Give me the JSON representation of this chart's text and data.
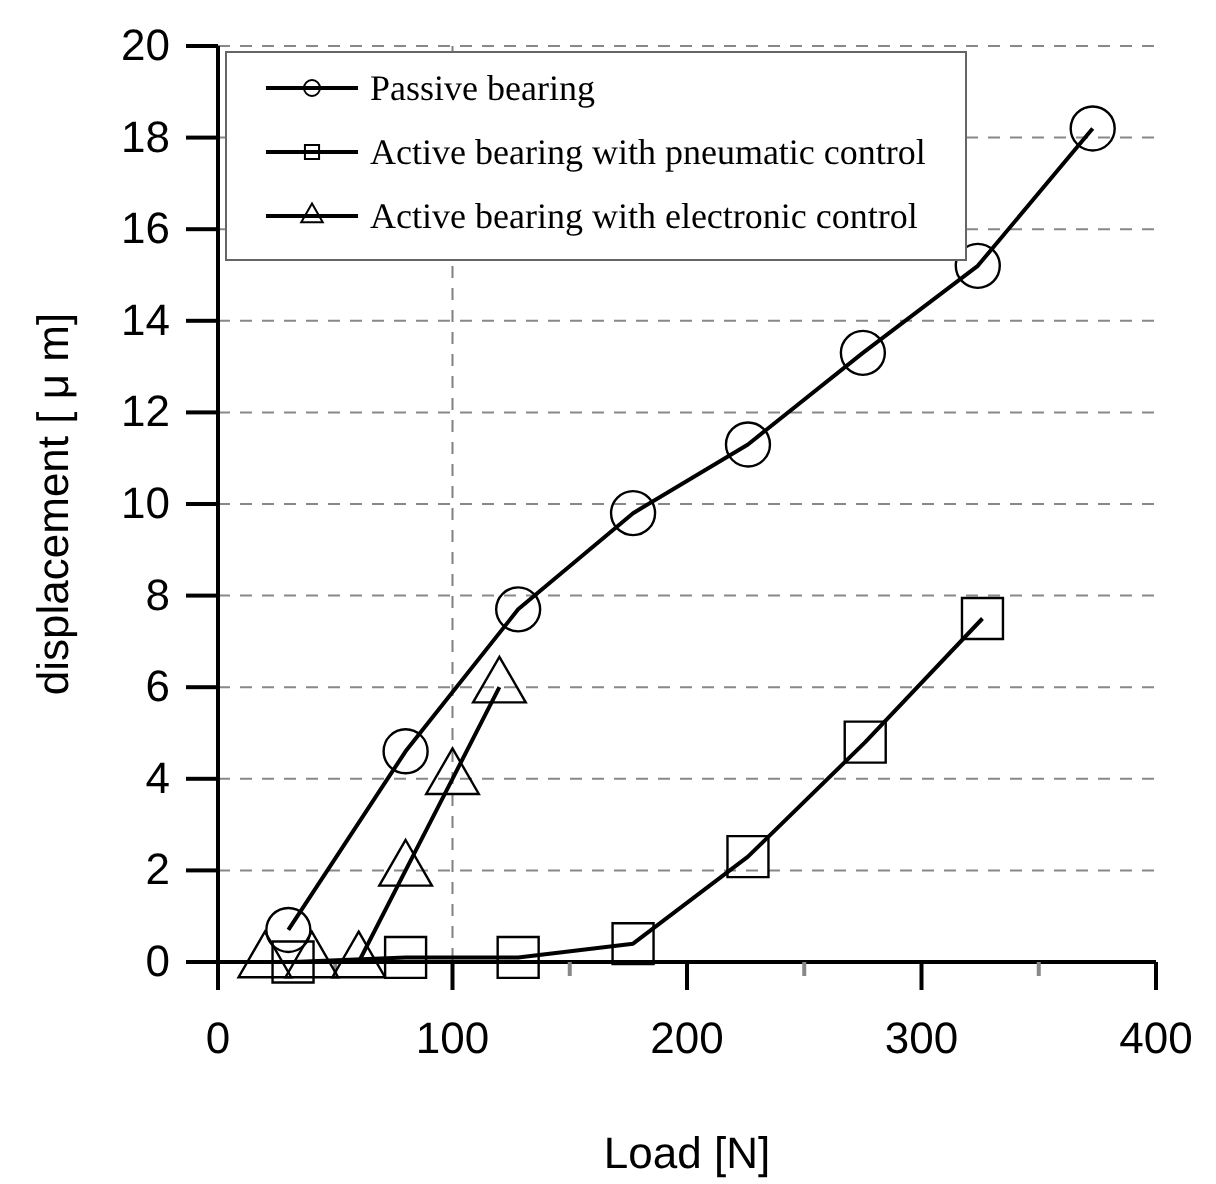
{
  "chart_data": {
    "type": "line",
    "xlabel": "Load [N]",
    "ylabel": "displacement [ μ m]",
    "xlim": [
      0,
      400
    ],
    "ylim": [
      0,
      20
    ],
    "xticks": [
      0,
      {
        "value": 50,
        "label": null
      },
      100,
      {
        "value": 150,
        "label": null
      },
      200,
      {
        "value": 250,
        "label": null
      },
      300,
      {
        "value": 350,
        "label": null
      },
      400
    ],
    "yticks": [
      0,
      2,
      4,
      6,
      8,
      10,
      12,
      14,
      16,
      18,
      20
    ],
    "grid": "y",
    "legend": "top left",
    "line_style": "solid",
    "ref_lines": [
      {
        "axis": "x",
        "value": 100,
        "label": null,
        "line_style": "dashed",
        "color": "#808080"
      }
    ],
    "series": [
      {
        "name": "Passive bearing",
        "color": "#000000",
        "marker": "circle",
        "x": [
          30,
          80,
          128,
          177,
          226,
          275,
          324,
          373
        ],
        "values": [
          0.7,
          4.6,
          7.7,
          9.8,
          11.3,
          13.3,
          15.2,
          18.2
        ]
      },
      {
        "name": "Active bearing with pneumatic control",
        "color": "#000000",
        "marker": "square",
        "x": [
          32,
          80,
          128,
          177,
          226,
          276,
          326
        ],
        "values": [
          0,
          0.1,
          0.1,
          0.4,
          2.3,
          4.8,
          7.5
        ]
      },
      {
        "name": "Active bearing with electronic control",
        "color": "#000000",
        "marker": "triangle",
        "x": [
          20,
          40,
          60,
          80,
          100,
          120
        ],
        "values": [
          0,
          0,
          0,
          2,
          4,
          6
        ]
      }
    ]
  }
}
